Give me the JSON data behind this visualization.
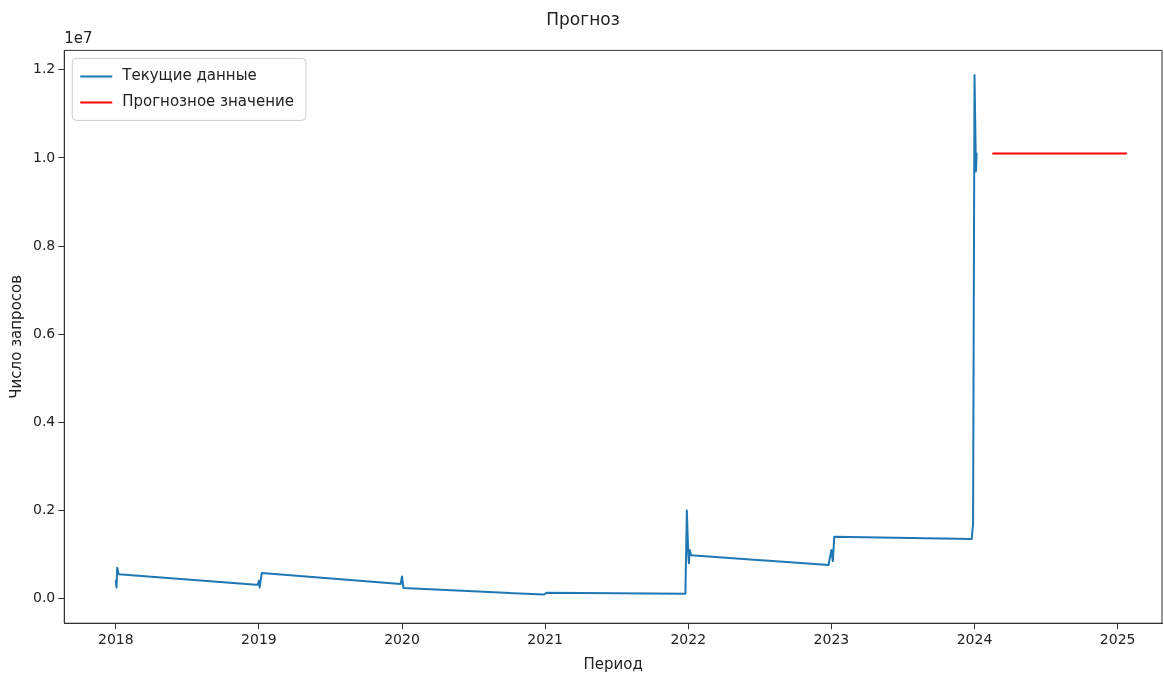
{
  "chart_data": {
    "type": "line",
    "title": "Прогноз",
    "xlabel": "Период",
    "ylabel": "Число запросов",
    "annotations": [
      "1e7"
    ],
    "xlim": [
      2017.64,
      2025.31
    ],
    "xticks": [
      2018,
      2019,
      2020,
      2021,
      2022,
      2023,
      2024,
      2025
    ],
    "ylim": [
      -0.056,
      1.244
    ],
    "yticks": [
      {
        "value": 0,
        "label": "0.0"
      },
      0.2,
      0.4,
      0.6,
      0.8,
      {
        "value": 1,
        "label": "1.0"
      },
      1.2
    ],
    "grid": false,
    "legend": "top left",
    "marker": "none",
    "line_style": "solid",
    "series": [
      {
        "name": "Текущие данные",
        "color": "#1f77b4",
        "x": [
          2018.0,
          2018.005,
          2018.01,
          2018.02,
          2018.99,
          2019.0,
          2019.005,
          2019.02,
          2019.99,
          2020.0,
          2020.01,
          2020.99,
          2021.01,
          2021.98,
          2021.99,
          2022.0,
          2022.005,
          2022.01,
          2022.02,
          2022.98,
          2023.0,
          2023.01,
          2023.02,
          2023.98,
          2023.99,
          2024.0,
          2024.01,
          2024.015
        ],
        "values": [
          0.04,
          0.025,
          0.07,
          0.055,
          0.031,
          0.04,
          0.025,
          0.058,
          0.033,
          0.05,
          0.024,
          0.009,
          0.013,
          0.011,
          0.2,
          0.1,
          0.08,
          0.11,
          0.098,
          0.076,
          0.11,
          0.085,
          0.14,
          0.135,
          0.17,
          1.188,
          0.97,
          1.01
        ]
      },
      {
        "name": "Прогнозное значение",
        "color": "#ff0000",
        "x": [
          2024.13,
          2025.06
        ],
        "values": [
          1.01,
          1.01
        ]
      }
    ]
  }
}
